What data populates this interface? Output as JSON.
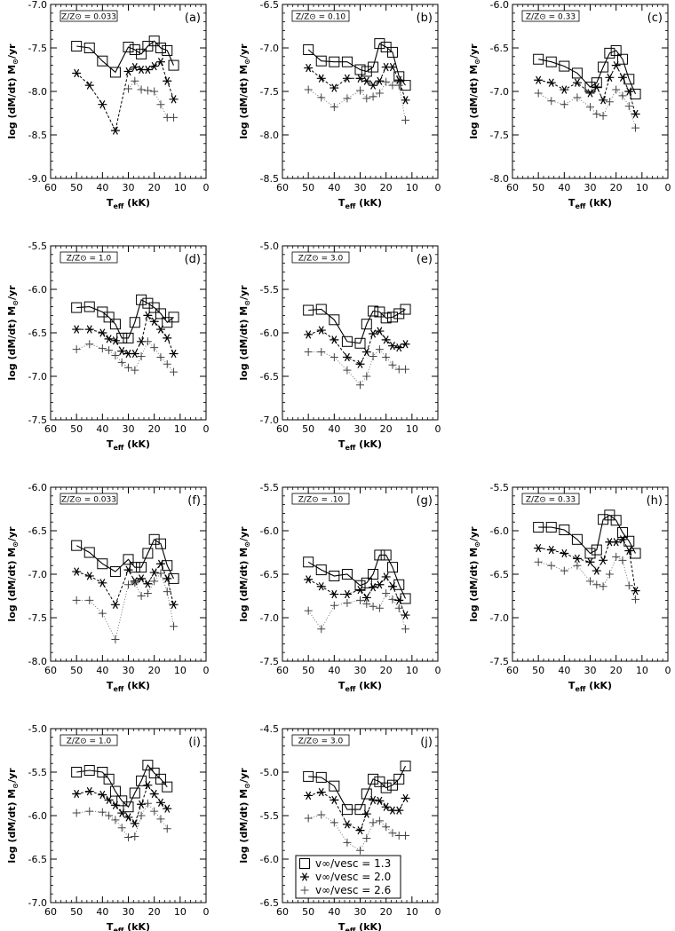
{
  "axis": {
    "x_ticks": [
      "60",
      "50",
      "40",
      "30",
      "20",
      "10",
      "0"
    ],
    "xlabel": "T",
    "xlabel_sub": "eff",
    "xlabel_unit": " (kK)",
    "ylabel": "log (dM/dt) M",
    "ylabel_sun": "⊙",
    "ylabel_unit": "/yr"
  },
  "legend": {
    "entries": [
      {
        "symbol": "square",
        "text": "v∞/vesc = 1.3"
      },
      {
        "symbol": "asterisk",
        "text": "v∞/vesc = 2.0"
      },
      {
        "symbol": "plus",
        "text": "v∞/vesc = 2.6"
      }
    ]
  },
  "chart_data": [
    {
      "type": "line",
      "panel": "(a)",
      "z_label": "Z/Z⊙ = 0.033",
      "xlim": [
        60,
        0
      ],
      "ylim": [
        -9.0,
        -7.0
      ],
      "y_ticks": [
        "-7.0",
        "-7.5",
        "-8.0",
        "-8.5",
        "-9.0"
      ],
      "x": [
        50,
        45,
        40,
        35,
        30,
        27.5,
        25,
        22.5,
        20,
        17.5,
        15,
        12.5
      ],
      "series": [
        {
          "values": [
            -7.48,
            -7.5,
            -7.65,
            -7.78,
            -7.49,
            -7.52,
            -7.57,
            -7.48,
            -7.42,
            -7.5,
            -7.53,
            -7.7
          ]
        },
        {
          "values": [
            -7.79,
            -7.93,
            -8.15,
            -8.45,
            -7.77,
            -7.72,
            -7.75,
            -7.75,
            -7.71,
            -7.66,
            -7.88,
            -8.09
          ]
        },
        {
          "values": [
            null,
            null,
            null,
            null,
            -7.97,
            -7.88,
            -7.98,
            -7.99,
            -8.0,
            -8.15,
            -8.3,
            -8.3
          ]
        }
      ]
    },
    {
      "type": "line",
      "panel": "(b)",
      "z_label": "Z/Z⊙ = 0.10",
      "xlim": [
        60,
        0
      ],
      "ylim": [
        -8.5,
        -6.5
      ],
      "y_ticks": [
        "-6.5",
        "-7.0",
        "-7.5",
        "-8.0",
        "-8.5"
      ],
      "x": [
        50,
        45,
        40,
        35,
        30,
        27.5,
        25,
        22.5,
        20,
        17.5,
        15,
        12.5
      ],
      "series": [
        {
          "values": [
            -7.02,
            -7.15,
            -7.16,
            -7.16,
            -7.25,
            -7.27,
            -7.22,
            -6.95,
            -6.99,
            -7.05,
            -7.33,
            -7.43
          ]
        },
        {
          "values": [
            -7.23,
            -7.35,
            -7.46,
            -7.35,
            -7.35,
            -7.38,
            -7.43,
            -7.38,
            -7.22,
            -7.22,
            -7.37,
            -7.6
          ]
        },
        {
          "values": [
            -7.48,
            -7.57,
            -7.68,
            -7.58,
            -7.49,
            -7.58,
            -7.56,
            -7.52,
            -7.39,
            -7.43,
            -7.43,
            -7.83
          ]
        }
      ]
    },
    {
      "type": "line",
      "panel": "(c)",
      "z_label": "Z/Z⊙ = 0.33",
      "xlim": [
        60,
        0
      ],
      "ylim": [
        -8.0,
        -6.0
      ],
      "y_ticks": [
        "-6.0",
        "-6.5",
        "-7.0",
        "-7.5",
        "-8.0"
      ],
      "x": [
        50,
        45,
        40,
        35,
        30,
        27.5,
        25,
        22.5,
        20,
        17.5,
        15,
        12.5
      ],
      "series": [
        {
          "values": [
            -6.63,
            -6.66,
            -6.71,
            -6.79,
            -6.95,
            -6.9,
            -6.72,
            -6.56,
            -6.53,
            -6.63,
            -6.86,
            -7.03
          ]
        },
        {
          "values": [
            -6.87,
            -6.9,
            -6.98,
            -6.9,
            -7.02,
            -6.95,
            -7.1,
            -6.84,
            -6.7,
            -6.84,
            -7.0,
            -7.26
          ]
        },
        {
          "values": [
            -7.02,
            -7.11,
            -7.15,
            -7.07,
            -7.18,
            -7.26,
            -7.28,
            -7.12,
            -6.98,
            -7.05,
            -7.17,
            -7.42
          ]
        }
      ]
    },
    {
      "type": "line",
      "panel": "(d)",
      "z_label": "Z/Z⊙ = 1.0",
      "xlim": [
        60,
        0
      ],
      "ylim": [
        -7.5,
        -5.5
      ],
      "y_ticks": [
        "-5.5",
        "-6.0",
        "-6.5",
        "-7.0",
        "-7.5"
      ],
      "x": [
        50,
        45,
        40,
        37.5,
        35,
        32.5,
        30,
        27.5,
        25,
        22.5,
        20,
        17.5,
        15,
        12.5
      ],
      "series": [
        {
          "values": [
            -6.21,
            -6.2,
            -6.26,
            -6.32,
            -6.4,
            -6.56,
            -6.56,
            -6.38,
            -6.12,
            -6.16,
            -6.21,
            -6.28,
            -6.38,
            -6.32
          ]
        },
        {
          "values": [
            -6.46,
            -6.46,
            -6.5,
            -6.57,
            -6.59,
            -6.71,
            -6.74,
            -6.74,
            -6.6,
            -6.3,
            -6.37,
            -6.46,
            -6.56,
            -6.74
          ]
        },
        {
          "values": [
            -6.69,
            -6.63,
            -6.68,
            -6.7,
            -6.76,
            -6.84,
            -6.9,
            -6.93,
            -6.77,
            -6.6,
            -6.67,
            -6.78,
            -6.86,
            -6.95
          ]
        }
      ]
    },
    {
      "type": "line",
      "panel": "(e)",
      "z_label": "Z/Z⊙ = 3.0",
      "xlim": [
        60,
        0
      ],
      "ylim": [
        -7.0,
        -5.0
      ],
      "y_ticks": [
        "-5.0",
        "-5.5",
        "-6.0",
        "-6.5",
        "-7.0"
      ],
      "x": [
        50,
        45,
        40,
        35,
        30,
        27.5,
        25,
        22.5,
        20,
        17.5,
        15,
        12.5
      ],
      "series": [
        {
          "values": [
            -5.74,
            -5.73,
            -5.85,
            -6.1,
            -6.12,
            -5.9,
            -5.75,
            -5.76,
            -5.83,
            -5.82,
            -5.78,
            -5.73
          ]
        },
        {
          "values": [
            -6.02,
            -5.97,
            -6.08,
            -6.28,
            -6.36,
            -6.22,
            -6.01,
            -5.98,
            -6.08,
            -6.15,
            -6.17,
            -6.13
          ]
        },
        {
          "values": [
            -6.22,
            -6.22,
            -6.28,
            -6.43,
            -6.6,
            -6.5,
            -6.27,
            -6.19,
            -6.28,
            -6.37,
            -6.42,
            -6.42
          ]
        }
      ]
    },
    {
      "type": "line",
      "panel": "(f)",
      "z_label": "Z/Z⊙ = 0.033",
      "xlim": [
        60,
        0
      ],
      "ylim": [
        -8.0,
        -6.0
      ],
      "y_ticks": [
        "-6.0",
        "-6.5",
        "-7.0",
        "-7.5",
        "-8.0"
      ],
      "x": [
        50,
        45,
        40,
        35,
        30,
        27.5,
        25,
        22.5,
        20,
        17.5,
        15,
        12.5
      ],
      "series": [
        {
          "values": [
            -6.67,
            -6.75,
            -6.88,
            -6.97,
            -6.83,
            -6.92,
            -6.92,
            -6.76,
            -6.6,
            -6.65,
            -6.9,
            -7.05
          ]
        },
        {
          "values": [
            -6.97,
            -7.02,
            -7.1,
            -7.35,
            -6.95,
            -7.08,
            -7.05,
            -7.11,
            -6.98,
            -6.88,
            -7.05,
            -7.35
          ]
        },
        {
          "values": [
            -7.3,
            -7.3,
            -7.45,
            -7.75,
            -7.12,
            -7.1,
            -7.25,
            -7.22,
            -7.08,
            -6.99,
            -7.2,
            -7.6
          ]
        }
      ]
    },
    {
      "type": "line",
      "panel": "(g)",
      "z_label": "Z/Z⊙ = .10",
      "xlim": [
        60,
        0
      ],
      "ylim": [
        -7.5,
        -5.5
      ],
      "y_ticks": [
        "-5.5",
        "-6.0",
        "-6.5",
        "-7.0",
        "-7.5"
      ],
      "x": [
        50,
        45,
        40,
        35,
        30,
        27.5,
        25,
        22.5,
        20,
        17.5,
        15,
        12.5
      ],
      "series": [
        {
          "values": [
            -6.36,
            -6.45,
            -6.52,
            -6.5,
            -6.63,
            -6.6,
            -6.5,
            -6.28,
            -6.28,
            -6.42,
            -6.62,
            -6.78
          ]
        },
        {
          "values": [
            -6.56,
            -6.64,
            -6.73,
            -6.73,
            -6.68,
            -6.77,
            -6.65,
            -6.62,
            -6.53,
            -6.64,
            -6.8,
            -6.97
          ]
        },
        {
          "values": [
            -6.92,
            -7.13,
            -6.86,
            -6.83,
            -6.8,
            -6.84,
            -6.87,
            -6.89,
            -6.72,
            -6.79,
            -6.89,
            -7.13
          ]
        }
      ]
    },
    {
      "type": "line",
      "panel": "(h)",
      "z_label": "Z/Z⊙ = 0.33",
      "xlim": [
        60,
        0
      ],
      "ylim": [
        -7.5,
        -5.5
      ],
      "y_ticks": [
        "-5.5",
        "-6.0",
        "-6.5",
        "-7.0",
        "-7.5"
      ],
      "x": [
        50,
        45,
        40,
        35,
        30,
        27.5,
        25,
        22.5,
        20,
        17.5,
        15,
        12.5
      ],
      "series": [
        {
          "values": [
            -5.96,
            -5.96,
            -5.99,
            -6.1,
            -6.26,
            -6.22,
            -5.87,
            -5.82,
            -5.88,
            -6.02,
            -6.12,
            -6.26
          ]
        },
        {
          "values": [
            -6.2,
            -6.22,
            -6.26,
            -6.32,
            -6.36,
            -6.46,
            -6.34,
            -6.13,
            -6.13,
            -6.1,
            -6.23,
            -6.69
          ]
        },
        {
          "values": [
            -6.36,
            -6.4,
            -6.46,
            -6.4,
            -6.58,
            -6.62,
            -6.64,
            -6.5,
            -6.3,
            -6.34,
            -6.63,
            -6.79
          ]
        }
      ]
    },
    {
      "type": "line",
      "panel": "(i)",
      "z_label": "Z/Z⊙ = 1.0",
      "xlim": [
        60,
        0
      ],
      "ylim": [
        -7.0,
        -5.0
      ],
      "y_ticks": [
        "-5.0",
        "-5.5",
        "-6.0",
        "-6.5",
        "-7.0"
      ],
      "x": [
        50,
        45,
        40,
        37.5,
        35,
        32.5,
        30,
        27.5,
        25,
        22.5,
        20,
        17.5,
        15
      ],
      "series": [
        {
          "values": [
            -5.5,
            -5.48,
            -5.5,
            -5.58,
            -5.72,
            -5.83,
            -5.9,
            -5.74,
            -5.6,
            -5.42,
            -5.51,
            -5.58,
            -5.67
          ]
        },
        {
          "values": [
            -5.75,
            -5.72,
            -5.76,
            -5.82,
            -5.88,
            -5.97,
            -6.02,
            -6.09,
            -5.87,
            -5.65,
            -5.75,
            -5.85,
            -5.92
          ]
        },
        {
          "values": [
            -5.97,
            -5.95,
            -5.96,
            -6.0,
            -6.05,
            -6.14,
            -6.25,
            -6.24,
            -6.0,
            -5.86,
            -5.95,
            -6.04,
            -6.15
          ]
        }
      ]
    },
    {
      "type": "line",
      "panel": "(j)",
      "z_label": "Z/Z⊙ = 3.0",
      "xlim": [
        60,
        0
      ],
      "ylim": [
        -6.5,
        -4.5
      ],
      "y_ticks": [
        "-4.5",
        "-5.0",
        "-5.5",
        "-6.0",
        "-6.5"
      ],
      "x": [
        50,
        45,
        40,
        35,
        30,
        27.5,
        25,
        22.5,
        20,
        17.5,
        15,
        12.5
      ],
      "series": [
        {
          "values": [
            -5.05,
            -5.06,
            -5.16,
            -5.43,
            -5.43,
            -5.25,
            -5.08,
            -5.11,
            -5.18,
            -5.15,
            -5.08,
            -4.93
          ]
        },
        {
          "values": [
            -5.27,
            -5.23,
            -5.32,
            -5.6,
            -5.67,
            -5.48,
            -5.32,
            -5.33,
            -5.4,
            -5.44,
            -5.44,
            -5.3
          ]
        },
        {
          "values": [
            -5.53,
            -5.49,
            -5.58,
            -5.81,
            -5.9,
            -5.76,
            -5.58,
            -5.56,
            -5.63,
            -5.7,
            -5.73,
            -5.73
          ]
        }
      ]
    }
  ]
}
